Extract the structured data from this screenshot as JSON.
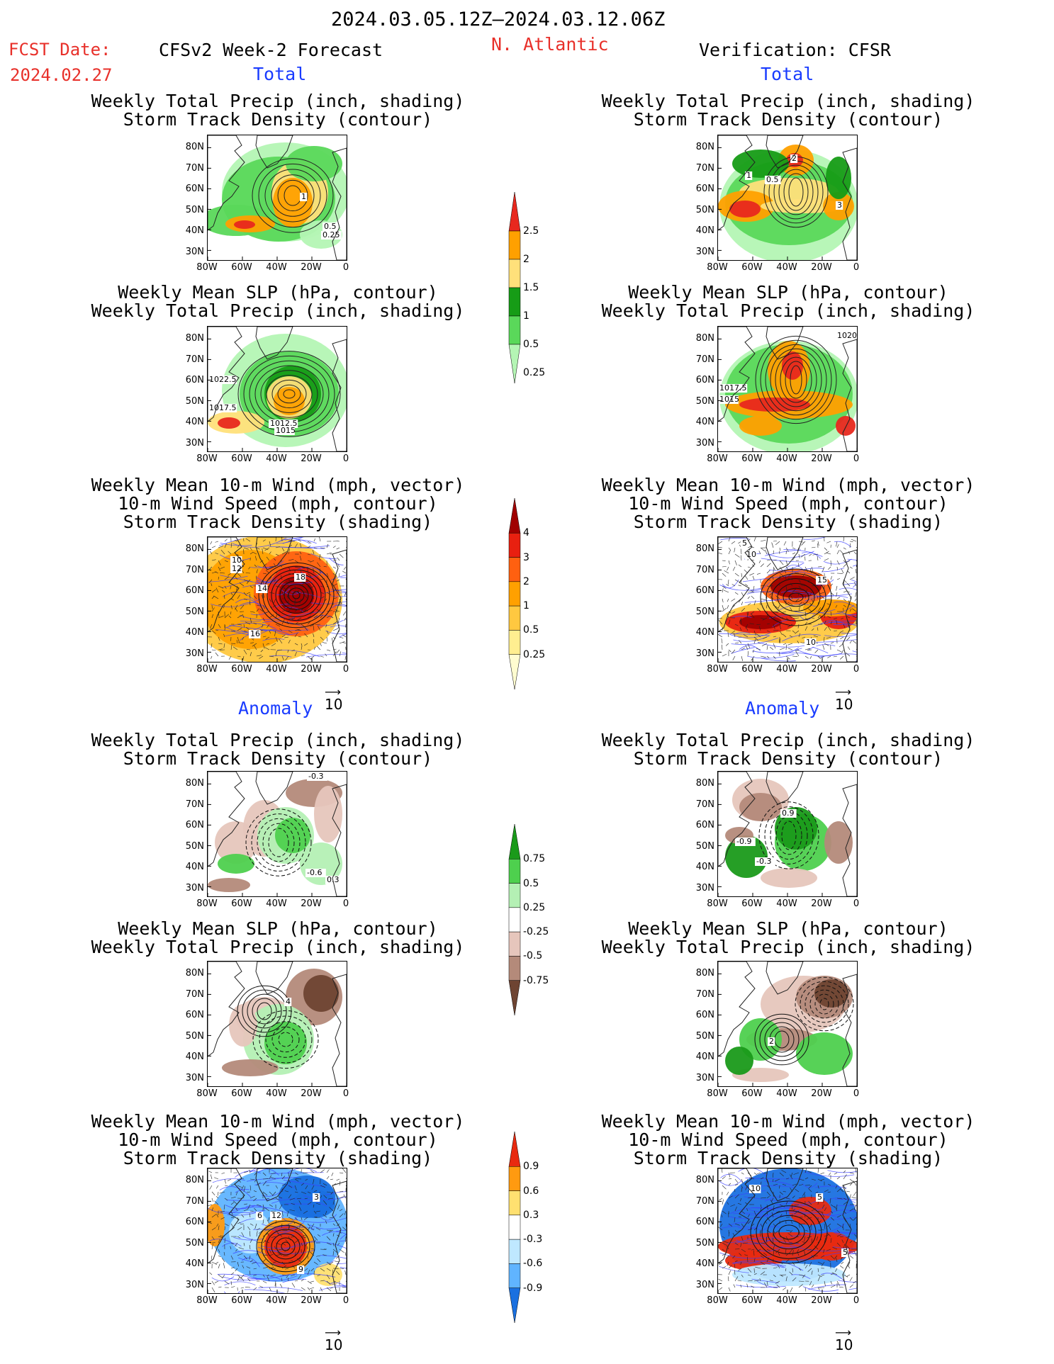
{
  "header": {
    "period": "2024.03.05.12Z–2024.03.12.06Z",
    "fcst_label": "FCST Date:",
    "fcst_date": "2024.02.27",
    "left_title": "CFSv2 Week-2 Forecast",
    "region": "N. Atlantic",
    "right_title": "Verification: CFSR"
  },
  "sections": {
    "total": "Total",
    "anomaly": "Anomaly"
  },
  "panel_titles": {
    "precip_track": [
      "Weekly Total Precip (inch, shading)",
      "Storm Track Density (contour)"
    ],
    "slp_precip": [
      "Weekly Mean SLP (hPa, contour)",
      "Weekly Total Precip (inch, shading)"
    ],
    "wind_track": [
      "Weekly Mean 10-m Wind (mph, vector)",
      "10-m Wind Speed (mph, contour)",
      "Storm Track Density (shading)"
    ]
  },
  "axes": {
    "lat_ticks": [
      "80N",
      "70N",
      "60N",
      "50N",
      "40N",
      "30N"
    ],
    "lon_ticks": [
      "80W",
      "60W",
      "40W",
      "20W",
      "0"
    ]
  },
  "vector_ref": "10",
  "colorbars": {
    "precip_total": {
      "labels": [
        "2.5",
        "2",
        "1.5",
        "1",
        "0.5",
        "0.25"
      ],
      "colors": [
        "#e8281e",
        "#ffa000",
        "#ffe07a",
        "#169c16",
        "#5ad85a",
        "#b4f5b4"
      ]
    },
    "track_total": {
      "labels": [
        "4",
        "3",
        "2",
        "1",
        "0.5",
        "0.25"
      ],
      "colors": [
        "#a00000",
        "#e82010",
        "#ff6010",
        "#ffa000",
        "#ffc840",
        "#ffee90",
        "#fffcd0"
      ]
    },
    "precip_anom": {
      "labels": [
        "0.75",
        "0.5",
        "0.25",
        "-0.25",
        "-0.5",
        "-0.75"
      ],
      "colors": [
        "#1a9a1a",
        "#4ed04e",
        "#b4f0b4",
        "#ffffff",
        "#e6c6bc",
        "#b48a7a",
        "#6e4432"
      ]
    },
    "track_anom": {
      "labels": [
        "0.9",
        "0.6",
        "0.3",
        "-0.3",
        "-0.6",
        "-0.9"
      ],
      "colors": [
        "#e82a10",
        "#ff9a10",
        "#ffe070",
        "#ffffff",
        "#bfe8ff",
        "#60b4ff",
        "#1a70e0"
      ]
    }
  },
  "contour_labels": {
    "p1": [
      "1",
      "0.5",
      "0.25"
    ],
    "p2": [
      "2",
      "1",
      "0.5",
      "3"
    ],
    "p3": [
      "1022.5",
      "1017.5",
      "1012.5",
      "1015"
    ],
    "p4": [
      "1020",
      "1017.5",
      "1015"
    ],
    "p5": [
      "10",
      "12",
      "14",
      "18",
      "16"
    ],
    "p6": [
      "5",
      "10",
      "15",
      "10"
    ],
    "p7": [
      "-0.3",
      "-0.6",
      "0.3"
    ],
    "p8": [
      "0.9",
      "-0.9",
      "-0.3"
    ],
    "p9": [
      "4"
    ],
    "p10": [
      "2"
    ],
    "p11": [
      "12",
      "6",
      "3",
      "9"
    ],
    "p12": [
      "10",
      "5",
      "5"
    ]
  },
  "chart_data": [
    {
      "type": "heatmap",
      "title": "Weekly Total Precip (inch, shading) / Storm Track Density (contour)",
      "section": "Total",
      "source": "CFSv2 Week-2 Forecast",
      "levels": [
        0.25,
        0.5,
        1,
        1.5,
        2,
        2.5
      ],
      "contour_labels": [
        1,
        0.5,
        0.25
      ]
    },
    {
      "type": "heatmap",
      "title": "Weekly Total Precip (inch, shading) / Storm Track Density (contour)",
      "section": "Total",
      "source": "Verification: CFSR",
      "levels": [
        0.25,
        0.5,
        1,
        1.5,
        2,
        2.5
      ],
      "contour_labels": [
        2,
        1,
        0.5,
        3
      ]
    },
    {
      "type": "heatmap",
      "title": "Weekly Mean SLP (hPa, contour) / Weekly Total Precip (inch, shading)",
      "section": "Total",
      "source": "CFSv2 Week-2 Forecast",
      "contour_labels": [
        1022.5,
        1017.5,
        1012.5,
        1015
      ]
    },
    {
      "type": "heatmap",
      "title": "Weekly Mean SLP (hPa, contour) / Weekly Total Precip (inch, shading)",
      "section": "Total",
      "source": "Verification: CFSR",
      "contour_labels": [
        1020,
        1017.5,
        1015
      ]
    },
    {
      "type": "heatmap",
      "title": "Weekly Mean 10-m Wind / 10-m Wind Speed / Storm Track Density",
      "section": "Total",
      "source": "CFSv2 Week-2 Forecast",
      "levels": [
        0.25,
        0.5,
        1,
        2,
        3,
        4
      ],
      "contour_labels": [
        10,
        12,
        14,
        18,
        16
      ]
    },
    {
      "type": "heatmap",
      "title": "Weekly Mean 10-m Wind / 10-m Wind Speed / Storm Track Density",
      "section": "Total",
      "source": "Verification: CFSR",
      "levels": [
        0.25,
        0.5,
        1,
        2,
        3,
        4
      ],
      "contour_labels": [
        5,
        10,
        15,
        10
      ]
    },
    {
      "type": "heatmap",
      "title": "Weekly Total Precip (inch, shading) / Storm Track Density (contour)",
      "section": "Anomaly",
      "source": "CFSv2 Week-2 Forecast",
      "levels": [
        -0.75,
        -0.5,
        -0.25,
        0.25,
        0.5,
        0.75
      ],
      "contour_labels": [
        -0.3,
        -0.6,
        0.3
      ]
    },
    {
      "type": "heatmap",
      "title": "Weekly Total Precip (inch, shading) / Storm Track Density (contour)",
      "section": "Anomaly",
      "source": "Verification: CFSR",
      "levels": [
        -0.75,
        -0.5,
        -0.25,
        0.25,
        0.5,
        0.75
      ],
      "contour_labels": [
        0.9,
        -0.9,
        -0.3
      ]
    },
    {
      "type": "heatmap",
      "title": "Weekly Mean SLP (hPa, contour) / Weekly Total Precip (inch, shading)",
      "section": "Anomaly",
      "source": "CFSv2 Week-2 Forecast",
      "contour_labels": [
        4
      ]
    },
    {
      "type": "heatmap",
      "title": "Weekly Mean SLP (hPa, contour) / Weekly Total Precip (inch, shading)",
      "section": "Anomaly",
      "source": "Verification: CFSR",
      "contour_labels": [
        2
      ]
    },
    {
      "type": "heatmap",
      "title": "Weekly Mean 10-m Wind / 10-m Wind Speed / Storm Track Density",
      "section": "Anomaly",
      "source": "CFSv2 Week-2 Forecast",
      "levels": [
        -0.9,
        -0.6,
        -0.3,
        0.3,
        0.6,
        0.9
      ],
      "contour_labels": [
        12,
        6,
        3,
        9
      ]
    },
    {
      "type": "heatmap",
      "title": "Weekly Mean 10-m Wind / 10-m Wind Speed / Storm Track Density",
      "section": "Anomaly",
      "source": "Verification: CFSR",
      "levels": [
        -0.9,
        -0.6,
        -0.3,
        0.3,
        0.6,
        0.9
      ],
      "contour_labels": [
        10,
        5,
        5
      ]
    }
  ]
}
